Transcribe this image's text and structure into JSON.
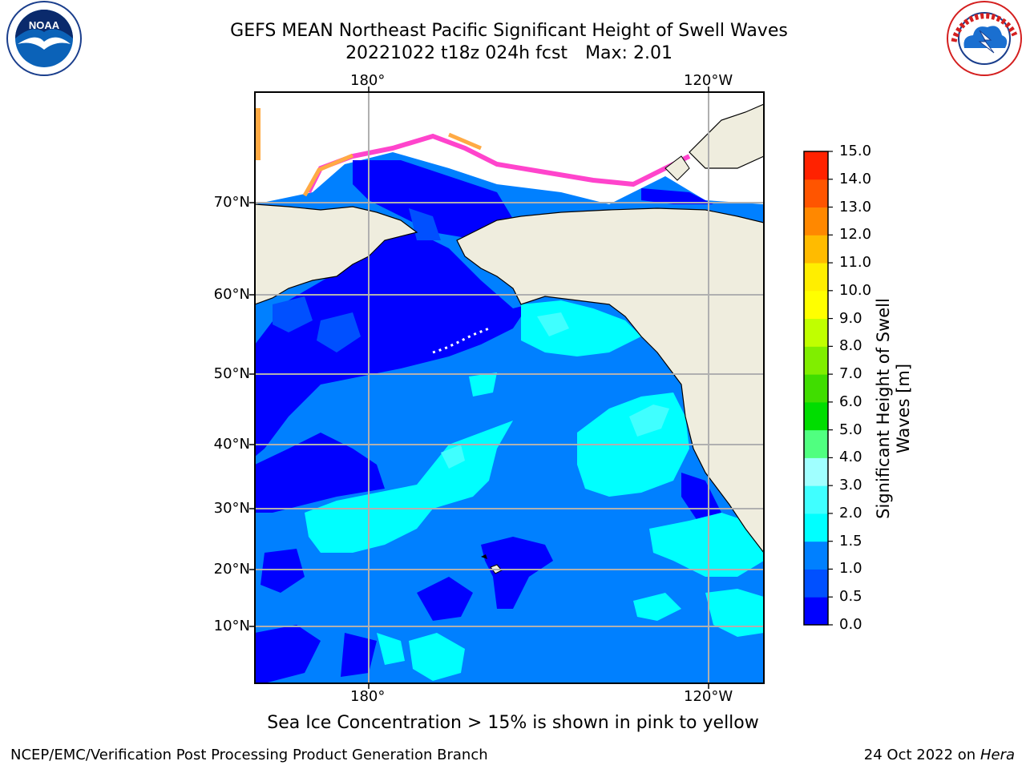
{
  "header": {
    "title": "GEFS MEAN Northeast Pacific Significant Height of Swell Waves",
    "date_fcst": "20221022 t18z 024h fcst",
    "max_label": "Max: 2.01"
  },
  "logos": {
    "left": {
      "name": "NOAA",
      "ring_text": "NATIONAL OCEANIC AND ATMOSPHERIC ADMINISTRATION · U.S. DEPARTMENT OF COMMERCE"
    },
    "right": {
      "name": "NATIONAL WEATHER SERVICE"
    }
  },
  "map": {
    "lon_labels": [
      "180°",
      "120°W"
    ],
    "lat_labels": [
      "70°N",
      "60°N",
      "50°N",
      "40°N",
      "30°N",
      "20°N",
      "10°N"
    ],
    "colors": {
      "land": "#efedde",
      "ice": "#ffffff",
      "grid": "#b0b0b0",
      "coast": "#000000"
    }
  },
  "colorbar": {
    "label": "Significant Height of Swell Waves [m]",
    "ticks": [
      "15.0",
      "14.0",
      "13.0",
      "12.0",
      "11.0",
      "10.0",
      "9.0",
      "8.0",
      "7.0",
      "6.0",
      "5.0",
      "4.0",
      "3.0",
      "2.0",
      "1.5",
      "1.0",
      "0.5",
      "0.0"
    ],
    "colors_bottom_to_top": [
      "#0000ff",
      "#0050ff",
      "#0080ff",
      "#00ffff",
      "#40ffff",
      "#a0ffff",
      "#50ff80",
      "#00dd00",
      "#40dd00",
      "#80ee00",
      "#c0ff00",
      "#ffff00",
      "#ffee00",
      "#ffbb00",
      "#ff8800",
      "#ff5500",
      "#ff2200"
    ]
  },
  "subtitle": "Sea Ice Concentration > 15% is shown in pink to yellow",
  "footer": {
    "left": "NCEP/EMC/Verification Post Processing Product Generation Branch",
    "right_date": "24 Oct 2022 on ",
    "right_host": "Hera"
  }
}
